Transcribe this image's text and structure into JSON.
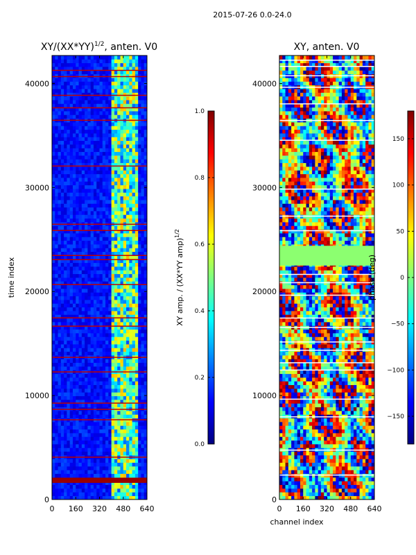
{
  "figure": {
    "suptitle": "2015-07-26 0.0-24.0"
  },
  "colormap": {
    "name": "jet",
    "stops": [
      "#00007f",
      "#0000ff",
      "#007fff",
      "#00ffff",
      "#7fff7f",
      "#ffff00",
      "#ff7f00",
      "#ff0000",
      "#7f0000"
    ]
  },
  "chart_data": [
    {
      "type": "heatmap",
      "title": "XY/(XX*YY)",
      "title_exponent": "1/2",
      "title_suffix": ", anten. V0",
      "xlabel": "",
      "ylabel": "time index",
      "xlim": [
        0,
        640
      ],
      "ylim": [
        0,
        42700
      ],
      "xticks": [
        0,
        160,
        320,
        480,
        640
      ],
      "yticks": [
        0,
        10000,
        20000,
        30000,
        40000
      ],
      "xtick_labels": [
        "0",
        "160",
        "320",
        "480",
        "640"
      ],
      "ytick_labels": [
        "0",
        "10000",
        "20000",
        "30000",
        "40000"
      ],
      "colorbar": {
        "label": "XY amp. / (XX*YY amp)",
        "label_exponent": "1/2",
        "range": [
          0.0,
          1.0
        ],
        "ticks": [
          0.0,
          0.2,
          0.4,
          0.6,
          0.8,
          1.0
        ],
        "tick_labels": [
          "0.0",
          "0.2",
          "0.4",
          "0.6",
          "0.8",
          "1.0"
        ]
      },
      "bright_channel_band": [
        410,
        580
      ],
      "flag_rows_time_index": [
        1900,
        4000,
        7600,
        8600,
        9200,
        12200,
        13600,
        16600,
        17400,
        20600,
        23000,
        23400,
        25800,
        26400,
        32000,
        36400,
        37600,
        38800,
        40600,
        41200
      ]
    },
    {
      "type": "heatmap",
      "title": "XY, anten. V0",
      "xlabel": "channel index",
      "ylabel": "",
      "xlim": [
        0,
        640
      ],
      "ylim": [
        0,
        42700
      ],
      "xticks": [
        0,
        160,
        320,
        480,
        640
      ],
      "yticks": [
        0,
        10000,
        20000,
        30000,
        40000
      ],
      "xtick_labels": [
        "0",
        "160",
        "320",
        "480",
        "640"
      ],
      "ytick_labels": [
        "0",
        "10000",
        "20000",
        "30000",
        "40000"
      ],
      "colorbar": {
        "label": "phase (deg)",
        "range": [
          -180,
          180
        ],
        "ticks": [
          -150,
          -100,
          -50,
          0,
          50,
          100,
          150
        ],
        "tick_labels": [
          "−150",
          "−100",
          "−50",
          "0",
          "50",
          "100",
          "150"
        ]
      },
      "flat_band_time_index": [
        22500,
        24400
      ],
      "gap_rows_time_index": [
        2300,
        4700,
        7900,
        9600,
        12400,
        13100,
        14300,
        15100,
        16500,
        17400,
        19600,
        20800,
        21600,
        25800,
        27200,
        29800,
        34500,
        36400,
        38000,
        39600,
        40700,
        41600,
        42200
      ]
    }
  ]
}
